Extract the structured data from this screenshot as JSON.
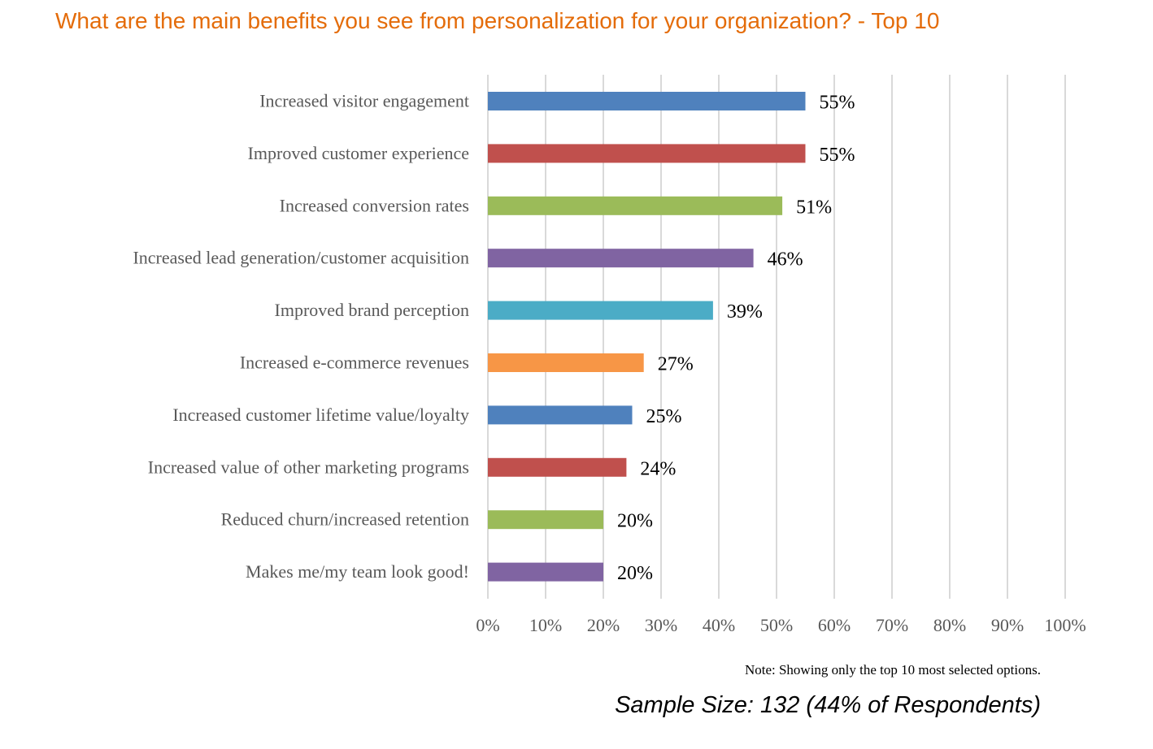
{
  "chart_data": {
    "type": "bar",
    "orientation": "horizontal",
    "title": "What are the main benefits you see from personalization for your organization? - Top 10",
    "categories": [
      "Increased visitor engagement",
      "Improved customer experience",
      "Increased conversion rates",
      "Increased lead generation/customer acquisition",
      "Improved brand perception",
      "Increased e-commerce revenues",
      "Increased customer lifetime value/loyalty",
      "Increased value of other marketing programs",
      "Reduced churn/increased retention",
      "Makes me/my team look good!"
    ],
    "values": [
      55,
      55,
      51,
      46,
      39,
      27,
      25,
      24,
      20,
      20
    ],
    "value_labels": [
      "55%",
      "55%",
      "51%",
      "46%",
      "39%",
      "27%",
      "25%",
      "24%",
      "20%",
      "20%"
    ],
    "colors": [
      "#4f81bd",
      "#c0504d",
      "#9bbb59",
      "#8064a2",
      "#4bacc6",
      "#f79646",
      "#4f81bd",
      "#c0504d",
      "#9bbb59",
      "#8064a2"
    ],
    "xlim": [
      0,
      100
    ],
    "xticks": [
      "0%",
      "10%",
      "20%",
      "30%",
      "40%",
      "50%",
      "60%",
      "70%",
      "80%",
      "90%",
      "100%"
    ],
    "xlabel": "",
    "ylabel": "",
    "grid": true
  },
  "note": "Note: Showing only the top 10 most selected options.",
  "sample_size": "Sample Size: 132 (44% of Respondents)",
  "colors": {
    "title": "#e46c0a",
    "grid": "#d9d9d9"
  }
}
